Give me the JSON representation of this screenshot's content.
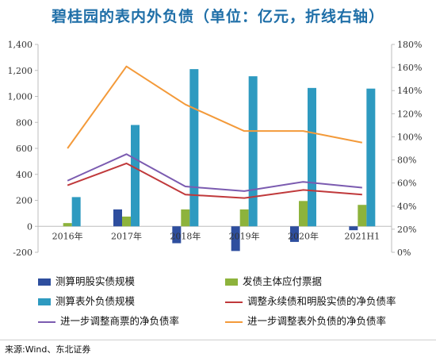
{
  "title": "碧桂园的表内外负债（单位：亿元，折线右轴）",
  "source": "来源:Wind、东北证券",
  "chart_data": {
    "type": "bar",
    "categories": [
      "2016年",
      "2017年",
      "2018年",
      "2019年",
      "2020年",
      "2021H1"
    ],
    "y_left": {
      "min": -200,
      "max": 1400,
      "step": 200,
      "ticks": [
        "-200",
        "0",
        "200",
        "400",
        "600",
        "800",
        "1,000",
        "1,200",
        "1,400"
      ]
    },
    "y_right": {
      "min": 0,
      "max": 180,
      "step": 20,
      "ticks": [
        "0%",
        "20%",
        "40%",
        "60%",
        "80%",
        "100%",
        "120%",
        "140%",
        "160%",
        "180%"
      ]
    },
    "bar_series": [
      {
        "name": "测算明股实债规模",
        "color": "#2E4E9E",
        "values": [
          0,
          130,
          -130,
          -190,
          -120,
          -30
        ]
      },
      {
        "name": "发债主体应付票据",
        "color": "#8DB33C",
        "values": [
          25,
          75,
          130,
          130,
          195,
          165
        ]
      },
      {
        "name": "测算表外负债规模",
        "color": "#2E9AC0",
        "values": [
          225,
          780,
          1210,
          1155,
          1065,
          1060
        ]
      }
    ],
    "line_series": [
      {
        "name": "调整永续债和明股实债的净负债率",
        "color": "#C0393B",
        "values": [
          58,
          77,
          50,
          47,
          54,
          50
        ]
      },
      {
        "name": "进一步调整商票的净负债率",
        "color": "#7B5BB0",
        "values": [
          62,
          85,
          57,
          53,
          61,
          56
        ]
      },
      {
        "name": "进一步调整表外负债的净负债率",
        "color": "#F39A3A",
        "values": [
          90,
          161,
          128,
          105,
          105,
          95
        ]
      }
    ]
  }
}
